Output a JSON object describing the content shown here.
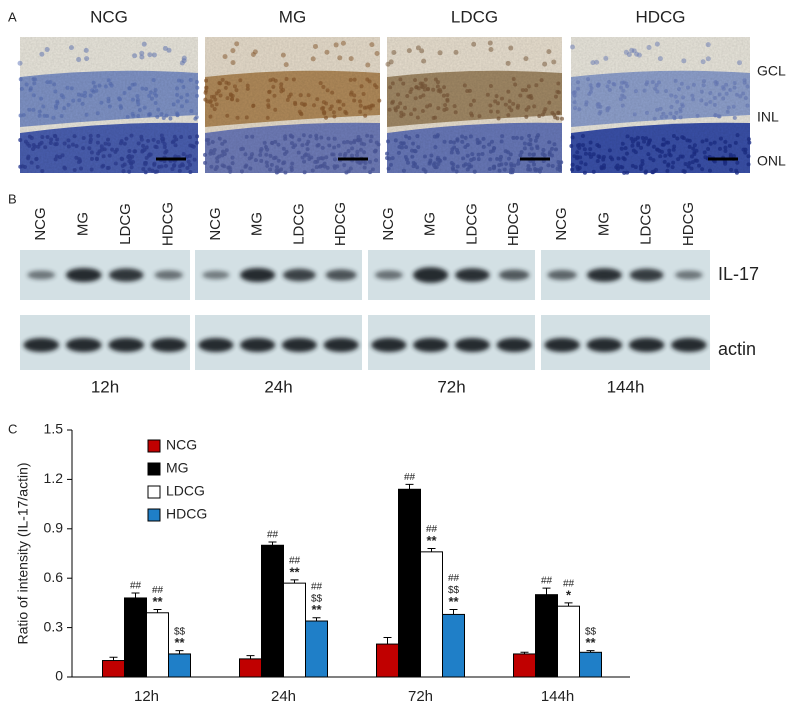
{
  "panel_a": {
    "label": "A",
    "groups": [
      "NCG",
      "MG",
      "LDCG",
      "HDCG"
    ],
    "layers": [
      "GCL",
      "INL",
      "ONL"
    ]
  },
  "panel_b": {
    "label": "B",
    "lanes": [
      "NCG",
      "MG",
      "LDCG",
      "HDCG"
    ],
    "proteins": [
      "IL-17",
      "actin"
    ],
    "times": [
      "12h",
      "24h",
      "72h",
      "144h"
    ]
  },
  "panel_c": {
    "label": "C"
  },
  "chart_data": {
    "type": "bar",
    "y_label": "Ratio of intensity (IL-17/actin)",
    "categories": [
      "12h",
      "24h",
      "72h",
      "144h"
    ],
    "ylim": [
      0,
      1.5
    ],
    "yticks": [
      0,
      0.3,
      0.6,
      0.9,
      1.2,
      1.5
    ],
    "series": [
      {
        "name": "NCG",
        "color": "#c00000",
        "values": [
          0.1,
          0.11,
          0.2,
          0.14
        ],
        "errors": [
          0.02,
          0.02,
          0.04,
          0.01
        ]
      },
      {
        "name": "MG",
        "color": "#000000",
        "values": [
          0.48,
          0.8,
          1.14,
          0.5
        ],
        "errors": [
          0.03,
          0.02,
          0.03,
          0.04
        ],
        "annotations": [
          [
            "##"
          ],
          [
            "##"
          ],
          [
            "##"
          ],
          [
            "##"
          ]
        ]
      },
      {
        "name": "LDCG",
        "color": "#ffffff",
        "values": [
          0.39,
          0.57,
          0.76,
          0.43
        ],
        "errors": [
          0.02,
          0.02,
          0.02,
          0.02
        ],
        "annotations": [
          [
            "##",
            "**"
          ],
          [
            "##",
            "**"
          ],
          [
            "##",
            "**"
          ],
          [
            "##",
            "*"
          ]
        ]
      },
      {
        "name": "HDCG",
        "color": "#1f7fc8",
        "values": [
          0.14,
          0.34,
          0.38,
          0.15
        ],
        "errors": [
          0.02,
          0.02,
          0.03,
          0.01
        ],
        "annotations": [
          [
            "$$",
            "**"
          ],
          [
            "##",
            "$$",
            "**"
          ],
          [
            "##",
            "$$",
            "**"
          ],
          [
            "$$",
            "**"
          ]
        ]
      }
    ]
  }
}
